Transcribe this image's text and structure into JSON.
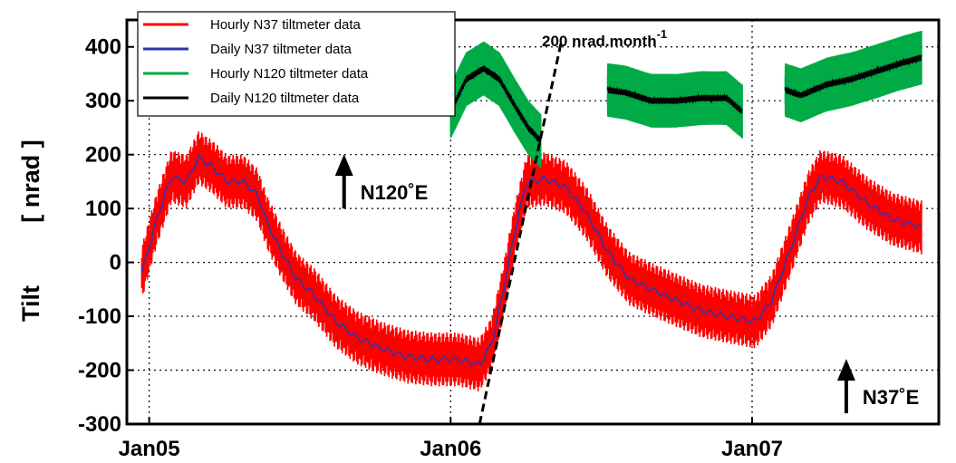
{
  "chart_data": {
    "type": "line",
    "title": "",
    "ylabel_left": "Tilt",
    "ylabel_right": "[ nrad ]",
    "ylim": [
      -300,
      450
    ],
    "yticks": [
      "400",
      "300",
      "200",
      "100",
      "0",
      "-100",
      "-200",
      "-300"
    ],
    "ytick_values": [
      400,
      300,
      200,
      100,
      0,
      -100,
      -200,
      -300
    ],
    "xlim": [
      "2004-12-05",
      "2007-08-15"
    ],
    "xticks": [
      {
        "label": "Jan05",
        "date": "2005-01-01"
      },
      {
        "label": "Jan06",
        "date": "2006-01-01"
      },
      {
        "label": "Jan07",
        "date": "2007-01-01"
      }
    ],
    "grid": true,
    "legend_position": "top-left",
    "series": [
      {
        "name": "Hourly N37 tiltmeter data",
        "color": "#ff0000",
        "style": "band",
        "points": [
          [
            "2004-12-23",
            -20
          ],
          [
            "2005-01-10",
            80
          ],
          [
            "2005-01-28",
            160
          ],
          [
            "2005-02-15",
            150
          ],
          [
            "2005-03-02",
            195
          ],
          [
            "2005-03-20",
            175
          ],
          [
            "2005-04-05",
            150
          ],
          [
            "2005-04-25",
            150
          ],
          [
            "2005-05-12",
            125
          ],
          [
            "2005-05-25",
            70
          ],
          [
            "2005-06-10",
            20
          ],
          [
            "2005-06-28",
            -30
          ],
          [
            "2005-07-20",
            -60
          ],
          [
            "2005-08-15",
            -110
          ],
          [
            "2005-09-10",
            -140
          ],
          [
            "2005-10-10",
            -160
          ],
          [
            "2005-11-10",
            -175
          ],
          [
            "2005-12-10",
            -180
          ],
          [
            "2006-01-10",
            -180
          ],
          [
            "2006-02-05",
            -190
          ],
          [
            "2006-02-20",
            -150
          ],
          [
            "2006-03-05",
            -60
          ],
          [
            "2006-03-20",
            60
          ],
          [
            "2006-04-03",
            150
          ],
          [
            "2006-04-25",
            155
          ],
          [
            "2006-05-20",
            140
          ],
          [
            "2006-06-15",
            90
          ],
          [
            "2006-07-10",
            20
          ],
          [
            "2006-08-05",
            -30
          ],
          [
            "2006-09-01",
            -50
          ],
          [
            "2006-10-01",
            -70
          ],
          [
            "2006-11-01",
            -90
          ],
          [
            "2006-12-01",
            -100
          ],
          [
            "2007-01-05",
            -110
          ],
          [
            "2007-01-25",
            -70
          ],
          [
            "2007-02-20",
            40
          ],
          [
            "2007-03-10",
            120
          ],
          [
            "2007-03-25",
            160
          ],
          [
            "2007-04-20",
            150
          ],
          [
            "2007-05-20",
            110
          ],
          [
            "2007-06-20",
            80
          ],
          [
            "2007-07-25",
            65
          ]
        ]
      },
      {
        "name": "Daily N37 tiltmeter data",
        "color": "#3333aa",
        "style": "line",
        "points": [
          [
            "2004-12-23",
            -20
          ],
          [
            "2005-01-10",
            80
          ],
          [
            "2005-01-28",
            160
          ],
          [
            "2005-02-15",
            150
          ],
          [
            "2005-03-02",
            195
          ],
          [
            "2005-03-20",
            175
          ],
          [
            "2005-04-05",
            150
          ],
          [
            "2005-04-25",
            150
          ],
          [
            "2005-05-12",
            125
          ],
          [
            "2005-05-25",
            70
          ],
          [
            "2005-06-10",
            20
          ],
          [
            "2005-06-28",
            -30
          ],
          [
            "2005-07-20",
            -60
          ],
          [
            "2005-08-15",
            -110
          ],
          [
            "2005-09-10",
            -140
          ],
          [
            "2005-10-10",
            -160
          ],
          [
            "2005-11-10",
            -175
          ],
          [
            "2005-12-10",
            -180
          ],
          [
            "2006-01-10",
            -180
          ],
          [
            "2006-02-05",
            -190
          ],
          [
            "2006-02-20",
            -150
          ],
          [
            "2006-03-05",
            -60
          ],
          [
            "2006-03-20",
            60
          ],
          [
            "2006-04-03",
            150
          ],
          [
            "2006-04-25",
            155
          ],
          [
            "2006-05-20",
            140
          ],
          [
            "2006-06-15",
            90
          ],
          [
            "2006-07-10",
            20
          ],
          [
            "2006-08-05",
            -30
          ],
          [
            "2006-09-01",
            -50
          ],
          [
            "2006-10-01",
            -70
          ],
          [
            "2006-11-01",
            -90
          ],
          [
            "2006-12-01",
            -100
          ],
          [
            "2007-01-05",
            -110
          ],
          [
            "2007-01-25",
            -70
          ],
          [
            "2007-02-20",
            40
          ],
          [
            "2007-03-10",
            120
          ],
          [
            "2007-03-25",
            160
          ],
          [
            "2007-04-20",
            150
          ],
          [
            "2007-05-20",
            110
          ],
          [
            "2007-06-20",
            80
          ],
          [
            "2007-07-25",
            65
          ]
        ]
      },
      {
        "name": "Hourly N120 tiltmeter data",
        "color": "#00aa44",
        "style": "band",
        "segments": [
          [
            [
              "2006-01-01",
              280
            ],
            [
              "2006-01-20",
              340
            ],
            [
              "2006-02-10",
              360
            ],
            [
              "2006-03-01",
              340
            ],
            [
              "2006-03-20",
              290
            ],
            [
              "2006-04-05",
              250
            ],
            [
              "2006-04-20",
              225
            ]
          ],
          [
            [
              "2006-07-10",
              320
            ],
            [
              "2006-08-01",
              315
            ],
            [
              "2006-09-01",
              300
            ],
            [
              "2006-10-01",
              300
            ],
            [
              "2006-11-01",
              305
            ],
            [
              "2006-12-01",
              305
            ],
            [
              "2006-12-20",
              280
            ]
          ],
          [
            [
              "2007-02-10",
              320
            ],
            [
              "2007-03-01",
              310
            ],
            [
              "2007-04-01",
              330
            ],
            [
              "2007-05-01",
              340
            ],
            [
              "2007-06-01",
              355
            ],
            [
              "2007-07-01",
              370
            ],
            [
              "2007-07-25",
              380
            ]
          ]
        ]
      },
      {
        "name": "Daily N120 tiltmeter data",
        "color": "#000000",
        "style": "line",
        "segments": [
          [
            [
              "2006-01-01",
              280
            ],
            [
              "2006-01-20",
              340
            ],
            [
              "2006-02-10",
              360
            ],
            [
              "2006-03-01",
              340
            ],
            [
              "2006-03-20",
              290
            ],
            [
              "2006-04-05",
              250
            ],
            [
              "2006-04-20",
              225
            ]
          ],
          [
            [
              "2006-07-10",
              320
            ],
            [
              "2006-08-01",
              315
            ],
            [
              "2006-09-01",
              300
            ],
            [
              "2006-10-01",
              300
            ],
            [
              "2006-11-01",
              305
            ],
            [
              "2006-12-01",
              305
            ],
            [
              "2006-12-20",
              280
            ]
          ],
          [
            [
              "2007-02-10",
              320
            ],
            [
              "2007-03-01",
              310
            ],
            [
              "2007-04-01",
              330
            ],
            [
              "2007-05-01",
              340
            ],
            [
              "2007-06-01",
              355
            ],
            [
              "2007-07-01",
              370
            ],
            [
              "2007-07-25",
              380
            ]
          ]
        ]
      }
    ],
    "trend_line": {
      "label_main": "200 nrad.month",
      "label_exp": "-1",
      "from": [
        "2006-02-05",
        -300
      ],
      "to": [
        "2006-05-15",
        410
      ]
    },
    "annotations": [
      {
        "text": "N120˚E",
        "arrow": "up",
        "anchor": [
          "2005-08-25",
          100
        ]
      },
      {
        "text": "N37˚E",
        "arrow": "up",
        "anchor": [
          "2007-04-25",
          -280
        ]
      }
    ]
  }
}
